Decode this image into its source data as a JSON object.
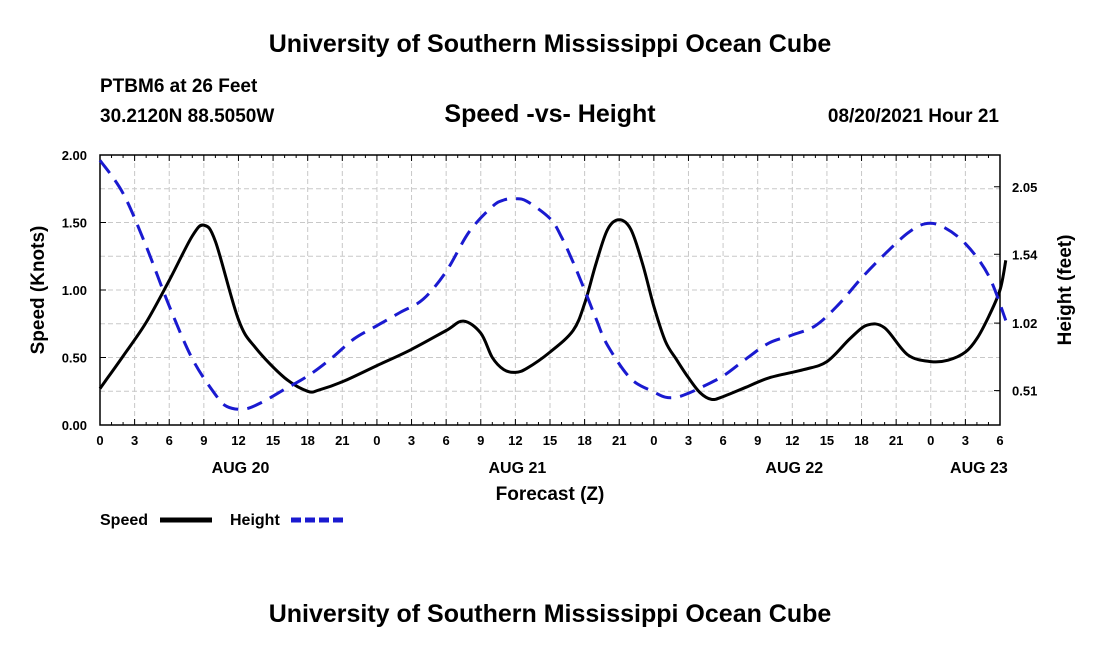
{
  "page": {
    "top_title": "University of Southern Mississippi Ocean Cube",
    "bottom_title": "University of Southern Mississippi Ocean Cube",
    "station": "PTBM6 at 26 Feet",
    "coords": "30.2120N  88.5050W",
    "datetime": "08/20/2021 Hour 21"
  },
  "chart_data": {
    "type": "line",
    "title": "Speed -vs- Height",
    "xlabel": "Forecast (Z)",
    "ylabel": "Speed (Knots)",
    "y2label": "Height (feet)",
    "x_hours_range": [
      0,
      78
    ],
    "ylim": [
      0,
      2.0
    ],
    "y2lim": [
      0.25,
      2.29
    ],
    "grid": true,
    "x_ticks": [
      {
        "hour": 0,
        "label": "0"
      },
      {
        "hour": 3,
        "label": "3"
      },
      {
        "hour": 6,
        "label": "6"
      },
      {
        "hour": 9,
        "label": "9"
      },
      {
        "hour": 12,
        "label": "12"
      },
      {
        "hour": 15,
        "label": "15"
      },
      {
        "hour": 18,
        "label": "18"
      },
      {
        "hour": 21,
        "label": "21"
      },
      {
        "hour": 24,
        "label": "0"
      },
      {
        "hour": 27,
        "label": "3"
      },
      {
        "hour": 30,
        "label": "6"
      },
      {
        "hour": 33,
        "label": "9"
      },
      {
        "hour": 36,
        "label": "12"
      },
      {
        "hour": 39,
        "label": "15"
      },
      {
        "hour": 42,
        "label": "18"
      },
      {
        "hour": 45,
        "label": "21"
      },
      {
        "hour": 48,
        "label": "0"
      },
      {
        "hour": 51,
        "label": "3"
      },
      {
        "hour": 54,
        "label": "6"
      },
      {
        "hour": 57,
        "label": "9"
      },
      {
        "hour": 60,
        "label": "12"
      },
      {
        "hour": 63,
        "label": "15"
      },
      {
        "hour": 66,
        "label": "18"
      },
      {
        "hour": 69,
        "label": "21"
      },
      {
        "hour": 72,
        "label": "0"
      },
      {
        "hour": 75,
        "label": "3"
      },
      {
        "hour": 78,
        "label": "6"
      }
    ],
    "day_labels": [
      {
        "hour": 12,
        "label": "AUG 20"
      },
      {
        "hour": 36,
        "label": "AUG 21"
      },
      {
        "hour": 60,
        "label": "AUG 22"
      },
      {
        "hour": 76,
        "label": "AUG 23"
      }
    ],
    "y_ticks": [
      {
        "value": 0,
        "label": "0.00"
      },
      {
        "value": 0.5,
        "label": "0.50"
      },
      {
        "value": 1.0,
        "label": "1.00"
      },
      {
        "value": 1.5,
        "label": "1.50"
      },
      {
        "value": 2.0,
        "label": "2.00"
      }
    ],
    "y2_ticks": [
      {
        "value": 0.51,
        "label": "0.51"
      },
      {
        "value": 1.02,
        "label": "1.02"
      },
      {
        "value": 1.54,
        "label": "1.54"
      },
      {
        "value": 2.05,
        "label": "2.05"
      }
    ],
    "series": [
      {
        "name": "Speed",
        "axis": "left",
        "color": "#000000",
        "dash": false,
        "points": [
          [
            0,
            0.27
          ],
          [
            2,
            0.51
          ],
          [
            4,
            0.76
          ],
          [
            6,
            1.07
          ],
          [
            8,
            1.4
          ],
          [
            9,
            1.48
          ],
          [
            10,
            1.36
          ],
          [
            12,
            0.78
          ],
          [
            13.5,
            0.57
          ],
          [
            16,
            0.35
          ],
          [
            18,
            0.25
          ],
          [
            19,
            0.26
          ],
          [
            21,
            0.32
          ],
          [
            24,
            0.44
          ],
          [
            27,
            0.56
          ],
          [
            30,
            0.7
          ],
          [
            31.5,
            0.77
          ],
          [
            33,
            0.68
          ],
          [
            34,
            0.5
          ],
          [
            35,
            0.41
          ],
          [
            36,
            0.39
          ],
          [
            37,
            0.42
          ],
          [
            39,
            0.54
          ],
          [
            41,
            0.7
          ],
          [
            42,
            0.9
          ],
          [
            43,
            1.2
          ],
          [
            44,
            1.45
          ],
          [
            45,
            1.52
          ],
          [
            46,
            1.45
          ],
          [
            47,
            1.2
          ],
          [
            48,
            0.88
          ],
          [
            49,
            0.62
          ],
          [
            50,
            0.48
          ],
          [
            51,
            0.35
          ],
          [
            52,
            0.24
          ],
          [
            53,
            0.19
          ],
          [
            54,
            0.21
          ],
          [
            56,
            0.28
          ],
          [
            58,
            0.35
          ],
          [
            61,
            0.41
          ],
          [
            63,
            0.47
          ],
          [
            65,
            0.64
          ],
          [
            66.5,
            0.74
          ],
          [
            68,
            0.72
          ],
          [
            70,
            0.52
          ],
          [
            72,
            0.47
          ],
          [
            73.5,
            0.48
          ],
          [
            75,
            0.54
          ],
          [
            76,
            0.64
          ],
          [
            77,
            0.8
          ],
          [
            78,
            1.0
          ],
          [
            78.5,
            1.22
          ]
        ]
      },
      {
        "name": "Height",
        "axis": "right",
        "color": "#1a1ad0",
        "dash": true,
        "points": [
          [
            0,
            2.25
          ],
          [
            2,
            2.0
          ],
          [
            4,
            1.6
          ],
          [
            6,
            1.15
          ],
          [
            8,
            0.75
          ],
          [
            10,
            0.48
          ],
          [
            11,
            0.39
          ],
          [
            12.5,
            0.37
          ],
          [
            14,
            0.42
          ],
          [
            16,
            0.52
          ],
          [
            18,
            0.62
          ],
          [
            20,
            0.75
          ],
          [
            22,
            0.9
          ],
          [
            24,
            1.0
          ],
          [
            26,
            1.1
          ],
          [
            28,
            1.2
          ],
          [
            30,
            1.41
          ],
          [
            32,
            1.71
          ],
          [
            34,
            1.9
          ],
          [
            35,
            1.95
          ],
          [
            36,
            1.96
          ],
          [
            37,
            1.94
          ],
          [
            39,
            1.81
          ],
          [
            40,
            1.67
          ],
          [
            41,
            1.48
          ],
          [
            42,
            1.27
          ],
          [
            43,
            1.05
          ],
          [
            44,
            0.85
          ],
          [
            46,
            0.6
          ],
          [
            48,
            0.5
          ],
          [
            49,
            0.46
          ],
          [
            50,
            0.46
          ],
          [
            51,
            0.49
          ],
          [
            52,
            0.53
          ],
          [
            54,
            0.62
          ],
          [
            56,
            0.75
          ],
          [
            58,
            0.87
          ],
          [
            60,
            0.93
          ],
          [
            62,
            1.0
          ],
          [
            64,
            1.16
          ],
          [
            66,
            1.36
          ],
          [
            68,
            1.54
          ],
          [
            70,
            1.7
          ],
          [
            71.5,
            1.77
          ],
          [
            73,
            1.75
          ],
          [
            75,
            1.62
          ],
          [
            77,
            1.38
          ],
          [
            78.5,
            1.04
          ]
        ]
      }
    ],
    "legend": [
      {
        "name": "Speed",
        "color": "#000000",
        "dash": false
      },
      {
        "name": "Height",
        "color": "#1a1ad0",
        "dash": true
      }
    ]
  }
}
